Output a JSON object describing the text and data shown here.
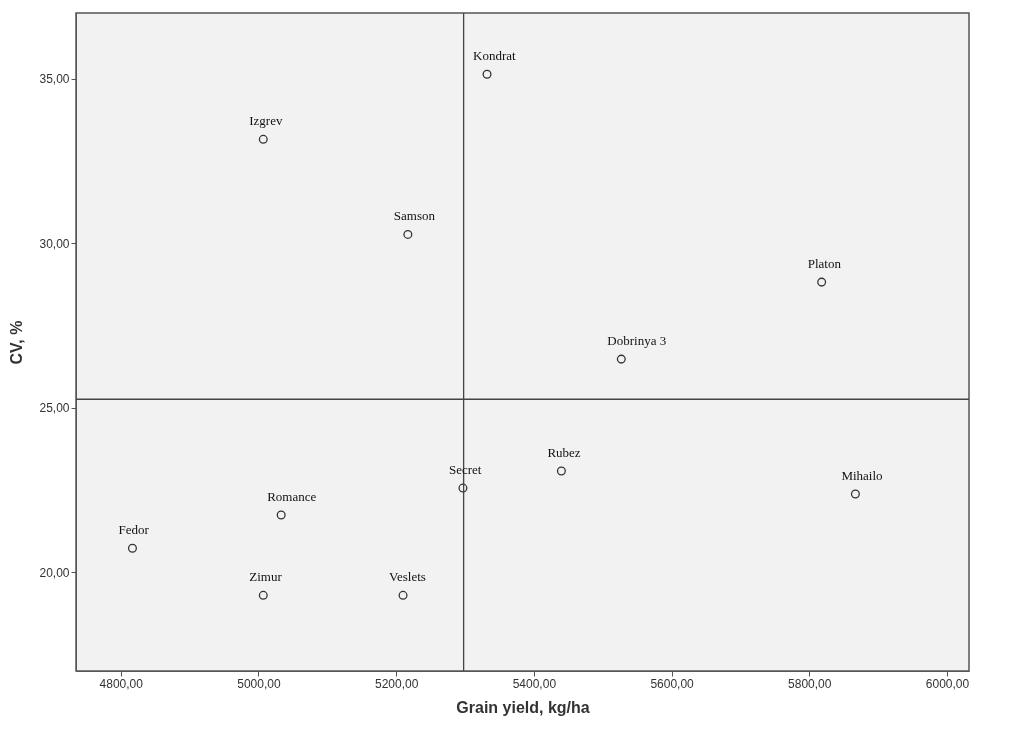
{
  "chart_data": {
    "type": "scatter",
    "xlabel": "Grain yield, kg/ha",
    "ylabel": "CV, %",
    "x": [
      5332,
      5007,
      5217,
      5818,
      5527,
      5440,
      5297,
      5867,
      5033,
      4817,
      5007,
      5210
    ],
    "series": [
      {
        "color": "#333333",
        "values": [
          35.14,
          33.16,
          30.27,
          28.82,
          26.48,
          23.08,
          22.56,
          22.38,
          21.74,
          20.73,
          19.3,
          19.3
        ]
      }
    ],
    "marker": "circle",
    "grid": false,
    "xlim": [
      4735,
      6032
    ],
    "ylim": [
      17.0,
      37.0
    ],
    "xticks": [
      {
        "value": 4800,
        "label": "4800,00"
      },
      {
        "value": 5000,
        "label": "5000,00"
      },
      {
        "value": 5200,
        "label": "5200,00"
      },
      {
        "value": 5400,
        "label": "5400,00"
      },
      {
        "value": 5600,
        "label": "5600,00"
      },
      {
        "value": 5800,
        "label": "5800,00"
      },
      {
        "value": 6000,
        "label": "6000,00"
      }
    ],
    "yticks": [
      {
        "value": 20,
        "label": "20,00"
      },
      {
        "value": 25,
        "label": "25,00"
      },
      {
        "value": 30,
        "label": "30,00"
      },
      {
        "value": 35,
        "label": "35,00"
      }
    ],
    "ref_lines": [
      {
        "axis": "x",
        "value": 5298
      },
      {
        "axis": "y",
        "value": 25.26
      }
    ],
    "annotations": [
      {
        "text": "Kondrat",
        "x": 5332,
        "y": 35.14
      },
      {
        "text": "Izgrev",
        "x": 5007,
        "y": 33.16
      },
      {
        "text": "Samson",
        "x": 5217,
        "y": 30.27
      },
      {
        "text": "Platon",
        "x": 5818,
        "y": 28.82
      },
      {
        "text": "Dobrinya 3",
        "x": 5527,
        "y": 26.48
      },
      {
        "text": "Rubez",
        "x": 5440,
        "y": 23.08
      },
      {
        "text": "Secret",
        "x": 5297,
        "y": 22.56
      },
      {
        "text": "Mihailo",
        "x": 5867,
        "y": 22.38
      },
      {
        "text": "Romance",
        "x": 5033,
        "y": 21.74
      },
      {
        "text": "Fedor",
        "x": 4817,
        "y": 20.73
      },
      {
        "text": "Zimur",
        "x": 5007,
        "y": 19.3
      },
      {
        "text": "Veslets",
        "x": 5210,
        "y": 19.3
      }
    ]
  }
}
